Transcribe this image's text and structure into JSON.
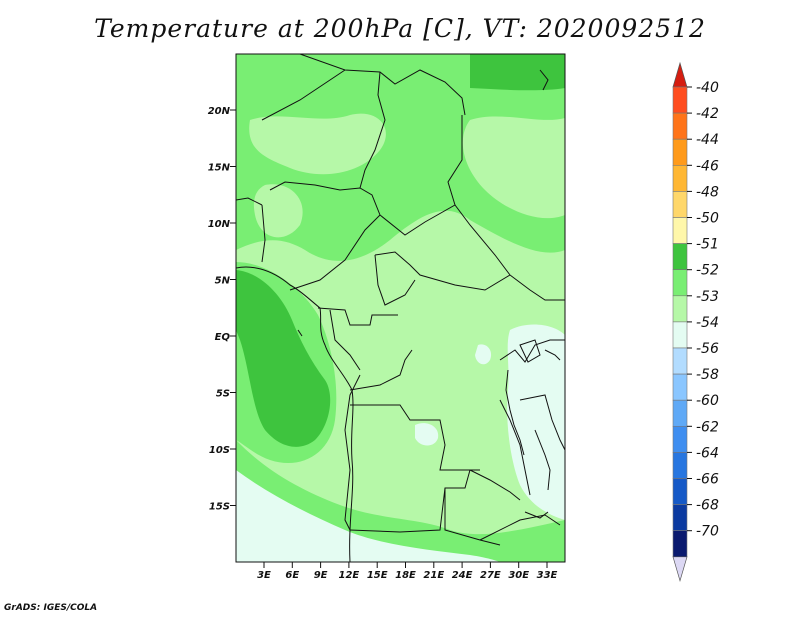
{
  "title": "Temperature at 200hPa [C], VT: 2020092512",
  "credit": "GrADS: IGES/COLA",
  "map": {
    "lat_ticks": [
      "20N",
      "15N",
      "10N",
      "5N",
      "EQ",
      "5S",
      "10S",
      "15S"
    ],
    "lon_ticks": [
      "3E",
      "6E",
      "9E",
      "12E",
      "15E",
      "18E",
      "21E",
      "24E",
      "27E",
      "30E",
      "33E"
    ]
  },
  "colorbar": {
    "levels": [
      {
        "label": "-40",
        "color": "#ff4d1f"
      },
      {
        "label": "-42",
        "color": "#ff7419"
      },
      {
        "label": "-44",
        "color": "#ff9a1a"
      },
      {
        "label": "-46",
        "color": "#ffb733"
      },
      {
        "label": "-48",
        "color": "#ffd76a"
      },
      {
        "label": "-50",
        "color": "#fff7aa"
      },
      {
        "label": "-51",
        "color": "#3ec43e"
      },
      {
        "label": "-52",
        "color": "#79ee73"
      },
      {
        "label": "-53",
        "color": "#b6f8a8"
      },
      {
        "label": "-54",
        "color": "#e4fcf2"
      },
      {
        "label": "-56",
        "color": "#b2dcff"
      },
      {
        "label": "-58",
        "color": "#8ac6ff"
      },
      {
        "label": "-60",
        "color": "#5fa9f6"
      },
      {
        "label": "-62",
        "color": "#3e8ef0"
      },
      {
        "label": "-64",
        "color": "#2776e0"
      },
      {
        "label": "-66",
        "color": "#1559c7"
      },
      {
        "label": "-68",
        "color": "#0b3aa0"
      },
      {
        "label": "-70",
        "color": "#0a1a6f"
      }
    ],
    "top_arrow_color": "#d51d10",
    "bottom_arrow_color": "#dcd8f4"
  }
}
